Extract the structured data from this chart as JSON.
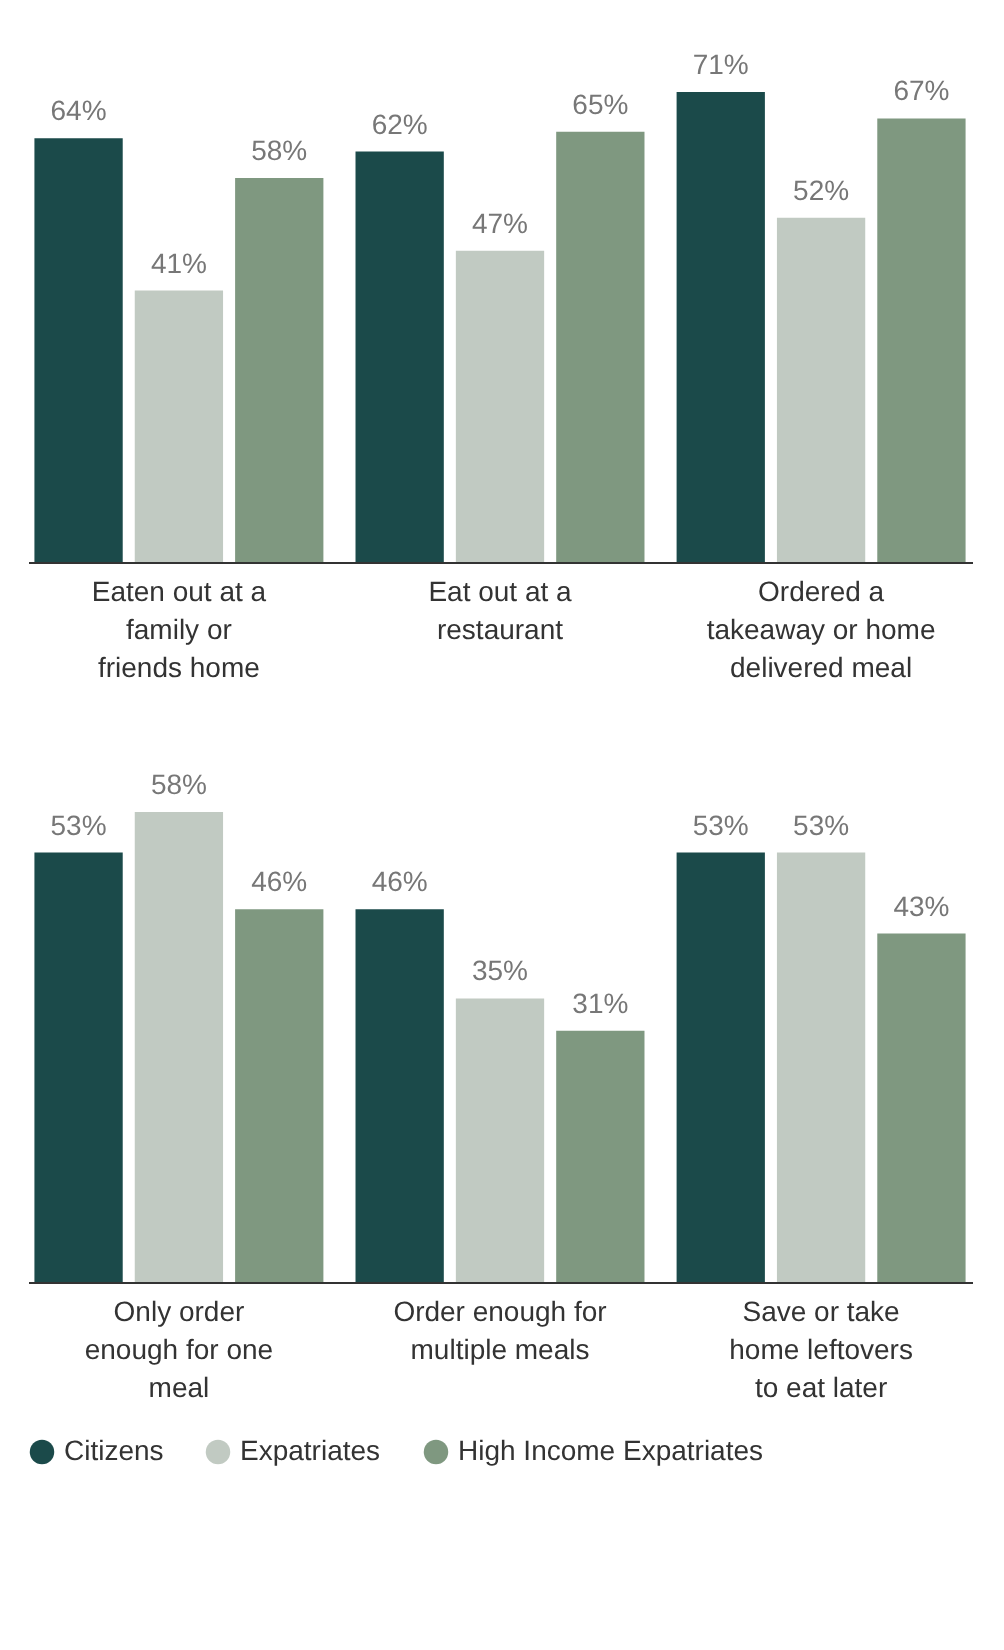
{
  "chart_data": [
    {
      "type": "bar",
      "categories": [
        "Eaten out at a family or friends home",
        "Eat out at a restaurant",
        "Ordered a takeaway or home delivered meal"
      ],
      "series": [
        {
          "name": "Citizens",
          "color": "#1b4a4a",
          "values": [
            64,
            62,
            71
          ],
          "value_labels": [
            "64%",
            "62%",
            "71%"
          ]
        },
        {
          "name": "Expatriates",
          "color": "#c1cac2",
          "values": [
            41,
            47,
            52
          ],
          "value_labels": [
            "41%",
            "47%",
            "52%"
          ]
        },
        {
          "name": "High Income Expatriates",
          "color": "#7f9880",
          "values": [
            58,
            65,
            67
          ],
          "value_labels": [
            "58%",
            "65%",
            "67%"
          ]
        }
      ],
      "legend": "bottom"
    },
    {
      "type": "bar",
      "categories": [
        "Only order enough for one meal",
        "Order enough for multiple meals",
        "Save or take home leftovers to eat later"
      ],
      "series": [
        {
          "name": "Citizens",
          "color": "#1b4a4a",
          "values": [
            53,
            46,
            53
          ],
          "value_labels": [
            "53%",
            "46%",
            "53%"
          ]
        },
        {
          "name": "Expatriates",
          "color": "#c1cac2",
          "values": [
            58,
            35,
            53
          ],
          "value_labels": [
            "58%",
            "35%",
            "53%"
          ]
        },
        {
          "name": "High Income Expatriates",
          "color": "#7f9880",
          "values": [
            46,
            31,
            43
          ],
          "value_labels": [
            "46%",
            "31%",
            "43%"
          ]
        }
      ],
      "legend": "bottom"
    }
  ]
}
